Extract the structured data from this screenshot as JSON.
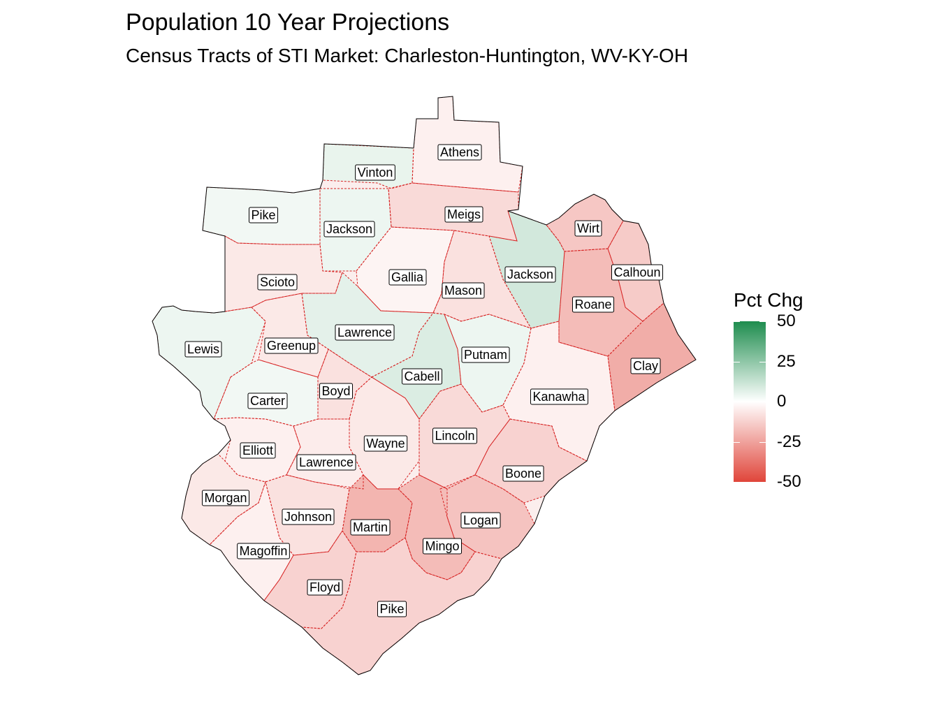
{
  "title": "Population 10 Year Projections",
  "subtitle": "Census Tracts of STI Market: Charleston-Huntington, WV-KY-OH",
  "legend": {
    "title": "Pct Chg",
    "min": -50,
    "max": 50,
    "ticks": [
      "50",
      "25",
      "0",
      "-25",
      "-50"
    ],
    "colors": {
      "high": "#1e8c4e",
      "mid": "#ffffff",
      "low": "#e0453a"
    }
  },
  "counties": [
    {
      "name": "Athens",
      "pct": -4
    },
    {
      "name": "Vinton",
      "pct": 5
    },
    {
      "name": "Meigs",
      "pct": -10
    },
    {
      "name": "Pike",
      "pct": 3
    },
    {
      "name": "Jackson",
      "pct": 4
    },
    {
      "name": "Wirt",
      "pct": -15
    },
    {
      "name": "Gallia",
      "pct": -3
    },
    {
      "name": "Jackson",
      "pct": 10
    },
    {
      "name": "Calhoun",
      "pct": -14
    },
    {
      "name": "Scioto",
      "pct": -6
    },
    {
      "name": "Mason",
      "pct": -8
    },
    {
      "name": "Roane",
      "pct": -18
    },
    {
      "name": "Lawrence",
      "pct": 6
    },
    {
      "name": "Lewis",
      "pct": 4
    },
    {
      "name": "Greenup",
      "pct": -6
    },
    {
      "name": "Putnam",
      "pct": 4
    },
    {
      "name": "Clay",
      "pct": -22
    },
    {
      "name": "Cabell",
      "pct": 8
    },
    {
      "name": "Boyd",
      "pct": -8
    },
    {
      "name": "Carter",
      "pct": 3
    },
    {
      "name": "Kanawha",
      "pct": -4
    },
    {
      "name": "Wayne",
      "pct": -6
    },
    {
      "name": "Lincoln",
      "pct": -10
    },
    {
      "name": "Elliott",
      "pct": -4
    },
    {
      "name": "Lawrence",
      "pct": -5
    },
    {
      "name": "Boone",
      "pct": -12
    },
    {
      "name": "Morgan",
      "pct": -6
    },
    {
      "name": "Johnson",
      "pct": -8
    },
    {
      "name": "Logan",
      "pct": -16
    },
    {
      "name": "Martin",
      "pct": -20
    },
    {
      "name": "Mingo",
      "pct": -18
    },
    {
      "name": "Magoffin",
      "pct": -4
    },
    {
      "name": "Floyd",
      "pct": -12
    },
    {
      "name": "Pike",
      "pct": -12
    }
  ]
}
